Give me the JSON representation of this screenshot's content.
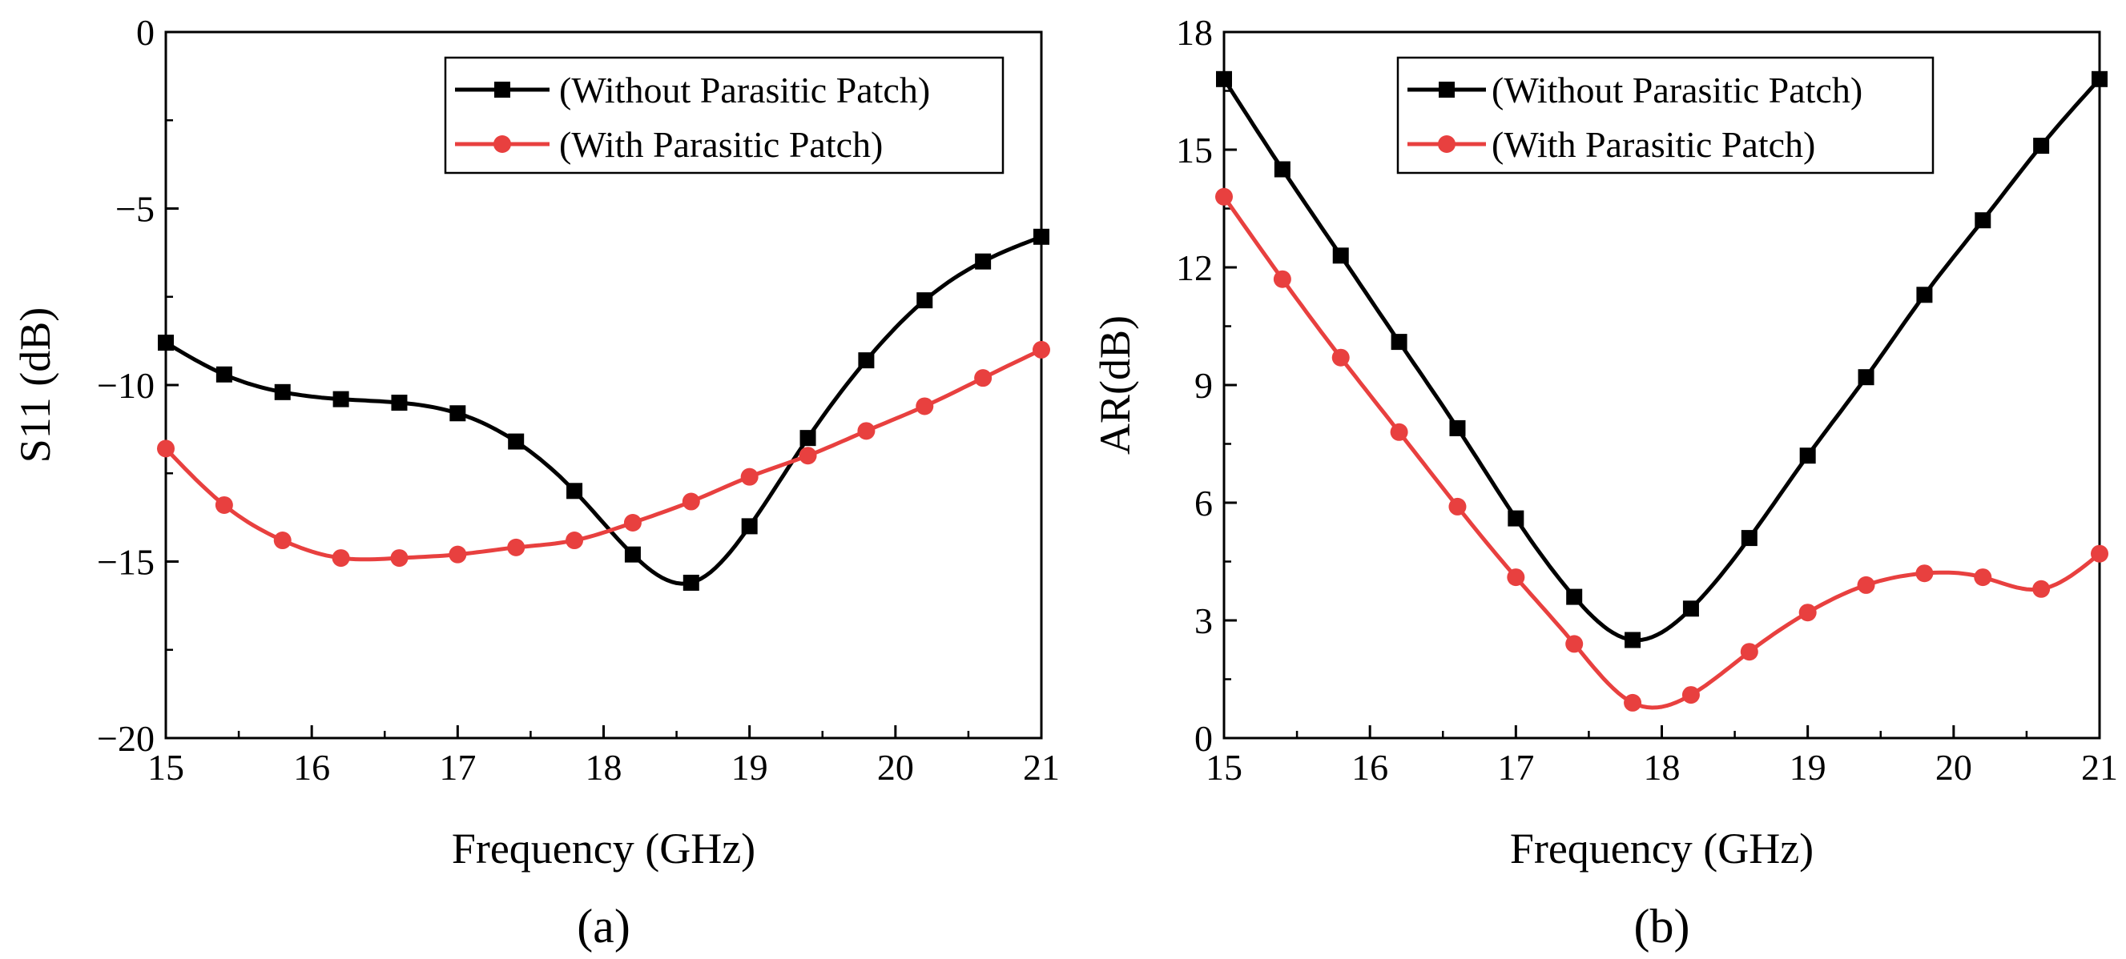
{
  "chart_data": [
    {
      "type": "line",
      "caption": "(a)",
      "xlabel": "Frequency (GHz)",
      "ylabel": "S11 (dB)",
      "xlim": [
        15,
        21
      ],
      "ylim": [
        -20,
        0
      ],
      "xticks": [
        "15",
        "16",
        "17",
        "18",
        "19",
        "20",
        "21"
      ],
      "yticks": [
        "−20",
        "−15",
        "−10",
        "−5",
        "0"
      ],
      "legend_position": "top-right",
      "series": [
        {
          "name": "(Without Parasitic Patch)",
          "color": "#000000",
          "marker": "square",
          "x": [
            15,
            15.4,
            15.8,
            16.2,
            16.6,
            17,
            17.4,
            17.8,
            18.2,
            18.6,
            19,
            19.4,
            19.8,
            20.2,
            20.6,
            21
          ],
          "y": [
            -8.8,
            -9.7,
            -10.2,
            -10.4,
            -10.5,
            -10.8,
            -11.6,
            -13.0,
            -14.8,
            -15.6,
            -14.0,
            -11.5,
            -9.3,
            -7.6,
            -6.5,
            -5.8
          ]
        },
        {
          "name": "(With Parasitic Patch)",
          "color": "#e8403f",
          "marker": "circle",
          "x": [
            15,
            15.4,
            15.8,
            16.2,
            16.6,
            17,
            17.4,
            17.8,
            18.2,
            18.6,
            19,
            19.4,
            19.8,
            20.2,
            20.6,
            21
          ],
          "y": [
            -11.8,
            -13.4,
            -14.4,
            -14.9,
            -14.9,
            -14.8,
            -14.6,
            -14.4,
            -13.9,
            -13.3,
            -12.6,
            -12.0,
            -11.3,
            -10.6,
            -9.8,
            -9.0
          ]
        }
      ]
    },
    {
      "type": "line",
      "caption": "(b)",
      "xlabel": "Frequency (GHz)",
      "ylabel": "AR(dB)",
      "xlim": [
        15,
        21
      ],
      "ylim": [
        0,
        18
      ],
      "xticks": [
        "15",
        "16",
        "17",
        "18",
        "19",
        "20",
        "21"
      ],
      "yticks": [
        "0",
        "3",
        "6",
        "9",
        "12",
        "15",
        "18"
      ],
      "legend_position": "top-right",
      "series": [
        {
          "name": "(Without Parasitic Patch)",
          "color": "#000000",
          "marker": "square",
          "x": [
            15,
            15.4,
            15.8,
            16.2,
            16.6,
            17,
            17.4,
            17.8,
            18.2,
            18.6,
            19,
            19.4,
            19.8,
            20.2,
            20.6,
            21
          ],
          "y": [
            16.8,
            14.5,
            12.3,
            10.1,
            7.9,
            5.6,
            3.6,
            2.5,
            3.3,
            5.1,
            7.2,
            9.2,
            11.3,
            13.2,
            15.1,
            16.8
          ]
        },
        {
          "name": "(With Parasitic Patch)",
          "color": "#e8403f",
          "marker": "circle",
          "x": [
            15,
            15.4,
            15.8,
            16.2,
            16.6,
            17,
            17.4,
            17.8,
            18.2,
            18.6,
            19,
            19.4,
            19.8,
            20.2,
            20.6,
            21
          ],
          "y": [
            13.8,
            11.7,
            9.7,
            7.8,
            5.9,
            4.1,
            2.4,
            0.9,
            1.1,
            2.2,
            3.2,
            3.9,
            4.2,
            4.1,
            3.8,
            4.7
          ]
        }
      ]
    }
  ]
}
